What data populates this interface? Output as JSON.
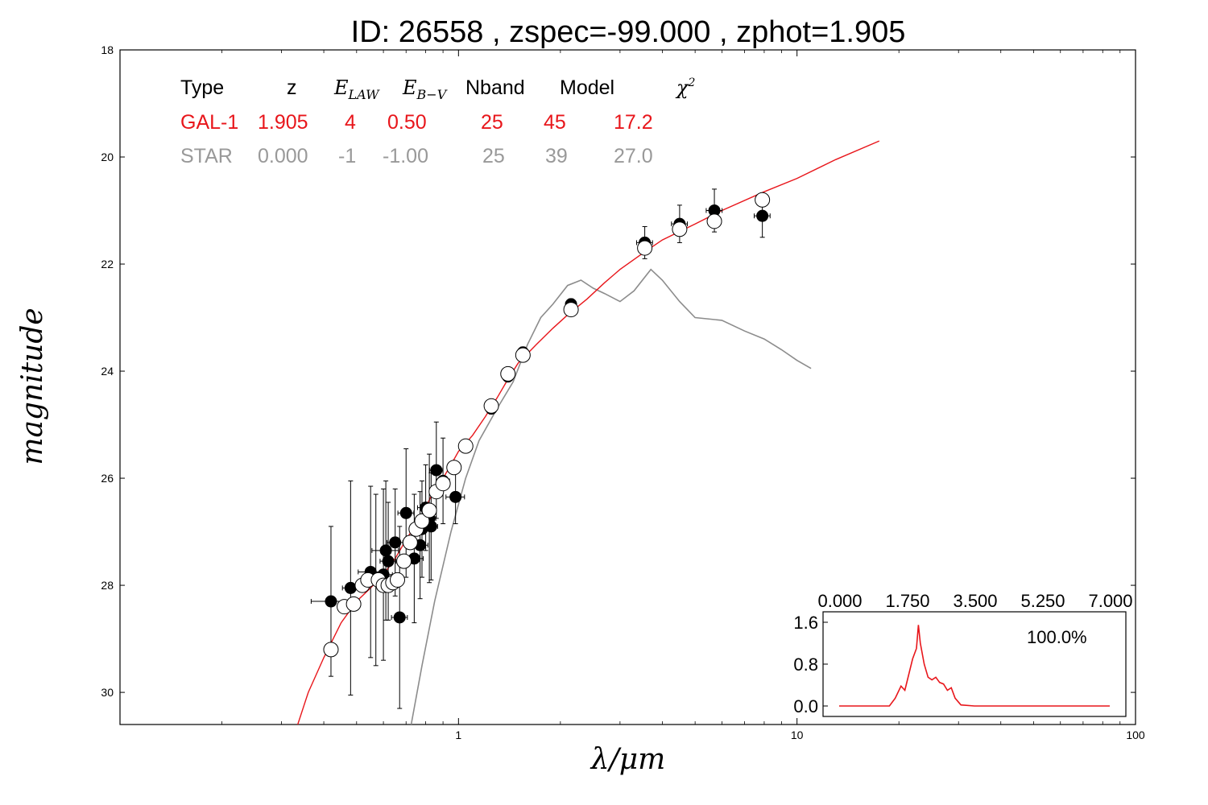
{
  "chart_data": [
    {
      "type": "scatter",
      "title": "ID:  26558 , zspec=-99.000 , zphot=1.905",
      "xlabel": "λ/μm",
      "ylabel": "magnitude",
      "xscale": "log",
      "xlim": [
        0.1,
        100
      ],
      "ylim": [
        30.6,
        18
      ],
      "yaxis_inverted": true,
      "x_tick_labels": [
        "1",
        "10",
        "100"
      ],
      "x_ticks": [
        1,
        10,
        100
      ],
      "y_tick_labels": [
        "18",
        "20",
        "22",
        "24",
        "26",
        "28",
        "30"
      ],
      "y_ticks": [
        18,
        20,
        22,
        24,
        26,
        28,
        30
      ],
      "table": {
        "header": [
          "Type",
          "z",
          "E_LAW",
          "E_B−V",
          "Nband",
          "Model",
          "χ²"
        ],
        "rows": [
          {
            "name": "GAL-1",
            "color": "#e8161b",
            "cells": [
              "GAL-1",
              "1.905",
              "4",
              "0.50",
              "25",
              "45",
              "17.2"
            ]
          },
          {
            "name": "STAR",
            "color": "#999999",
            "cells": [
              "STAR",
              "0.000",
              "-1",
              "-1.00",
              "25",
              "39",
              "27.0"
            ]
          }
        ]
      },
      "colors": {
        "galaxy_model": "#e8161b",
        "star_model": "#8c8c8c",
        "observed": "#000000",
        "model_mag": "#ffffff"
      },
      "series": [
        {
          "style": "filled-circles-errorbars",
          "points": [
            [
              0.42,
              28.3,
              0.7,
              1.4
            ],
            [
              0.48,
              28.05,
              0.3,
              2.0
            ],
            [
              0.55,
              27.75,
              0.45,
              1.6
            ],
            [
              0.57,
              27.9,
              0.4,
              1.6
            ],
            [
              0.6,
              27.8,
              0.35,
              1.6
            ],
            [
              0.61,
              27.35,
              0.5,
              1.3
            ],
            [
              0.62,
              27.55,
              0.3,
              1.1
            ],
            [
              0.65,
              27.2,
              0.3,
              1.0
            ],
            [
              0.67,
              28.6,
              0.3,
              1.7
            ],
            [
              0.7,
              26.65,
              0.3,
              1.2
            ],
            [
              0.74,
              27.5,
              0.35,
              1.2
            ],
            [
              0.77,
              27.25,
              0.3,
              1.0
            ],
            [
              0.78,
              26.95,
              0.3,
              0.9
            ],
            [
              0.8,
              26.55,
              0.3,
              0.8
            ],
            [
              0.82,
              26.75,
              0.25,
              1.2
            ],
            [
              0.83,
              26.9,
              0.25,
              1.0
            ],
            [
              0.86,
              25.85,
              0.25,
              0.9
            ],
            [
              0.9,
              26.05,
              0.25,
              0.8
            ],
            [
              0.98,
              26.35,
              0.35,
              0.5
            ],
            [
              1.25,
              24.7,
              0.2,
              0.1
            ],
            [
              1.4,
              24.1,
              0.2,
              0.1
            ],
            [
              1.55,
              23.65,
              0.2,
              0.1
            ],
            [
              2.15,
              22.75,
              0.2,
              0.1
            ],
            [
              3.55,
              21.6,
              0.3,
              0.3
            ],
            [
              4.5,
              21.25,
              0.3,
              0.35
            ],
            [
              5.7,
              21.0,
              0.3,
              0.4
            ],
            [
              7.9,
              21.1,
              0.3,
              0.4
            ]
          ]
        },
        {
          "style": "open-circles",
          "points": [
            [
              0.42,
              29.2
            ],
            [
              0.46,
              28.4
            ],
            [
              0.49,
              28.35
            ],
            [
              0.52,
              28.0
            ],
            [
              0.54,
              27.9
            ],
            [
              0.58,
              27.9
            ],
            [
              0.6,
              28.0
            ],
            [
              0.62,
              28.0
            ],
            [
              0.64,
              27.95
            ],
            [
              0.66,
              27.9
            ],
            [
              0.69,
              27.55
            ],
            [
              0.72,
              27.2
            ],
            [
              0.75,
              26.95
            ],
            [
              0.78,
              26.8
            ],
            [
              0.82,
              26.6
            ],
            [
              0.86,
              26.25
            ],
            [
              0.9,
              26.1
            ],
            [
              0.97,
              25.8
            ],
            [
              1.05,
              25.4
            ],
            [
              1.25,
              24.65
            ],
            [
              1.4,
              24.05
            ],
            [
              1.55,
              23.7
            ],
            [
              2.15,
              22.85
            ],
            [
              3.55,
              21.7
            ],
            [
              4.5,
              21.35
            ],
            [
              5.7,
              21.2
            ],
            [
              7.9,
              20.8
            ]
          ]
        },
        {
          "style": "line",
          "color": "#e8161b",
          "points": [
            [
              0.335,
              30.6
            ],
            [
              0.36,
              30.0
            ],
            [
              0.4,
              29.35
            ],
            [
              0.45,
              28.7
            ],
            [
              0.5,
              28.3
            ],
            [
              0.55,
              28.05
            ],
            [
              0.6,
              27.8
            ],
            [
              0.65,
              27.5
            ],
            [
              0.7,
              27.15
            ],
            [
              0.75,
              26.85
            ],
            [
              0.8,
              26.55
            ],
            [
              0.85,
              26.2
            ],
            [
              0.9,
              26.0
            ],
            [
              0.95,
              25.75
            ],
            [
              1.0,
              25.5
            ],
            [
              1.1,
              25.2
            ],
            [
              1.2,
              24.85
            ],
            [
              1.3,
              24.5
            ],
            [
              1.4,
              24.15
            ],
            [
              1.5,
              23.85
            ],
            [
              1.7,
              23.5
            ],
            [
              1.9,
              23.2
            ],
            [
              2.1,
              22.95
            ],
            [
              2.4,
              22.65
            ],
            [
              2.7,
              22.35
            ],
            [
              3.0,
              22.1
            ],
            [
              3.5,
              21.8
            ],
            [
              4.0,
              21.55
            ],
            [
              5.0,
              21.25
            ],
            [
              6.0,
              21.0
            ],
            [
              8.0,
              20.65
            ],
            [
              10.0,
              20.4
            ],
            [
              13.0,
              20.05
            ],
            [
              17.5,
              19.7
            ]
          ]
        },
        {
          "style": "line",
          "color": "#8c8c8c",
          "points": [
            [
              0.725,
              30.6
            ],
            [
              0.78,
              29.5
            ],
            [
              0.85,
              28.3
            ],
            [
              0.95,
              27.0
            ],
            [
              1.05,
              26.0
            ],
            [
              1.15,
              25.3
            ],
            [
              1.3,
              24.7
            ],
            [
              1.45,
              24.2
            ],
            [
              1.6,
              23.5
            ],
            [
              1.75,
              23.0
            ],
            [
              1.9,
              22.75
            ],
            [
              2.1,
              22.4
            ],
            [
              2.3,
              22.3
            ],
            [
              2.5,
              22.45
            ],
            [
              2.7,
              22.55
            ],
            [
              3.0,
              22.7
            ],
            [
              3.3,
              22.5
            ],
            [
              3.7,
              22.1
            ],
            [
              4.0,
              22.3
            ],
            [
              4.5,
              22.7
            ],
            [
              5.0,
              23.0
            ],
            [
              6.0,
              23.05
            ],
            [
              7.0,
              23.25
            ],
            [
              8.0,
              23.4
            ],
            [
              9.0,
              23.6
            ],
            [
              10.0,
              23.8
            ],
            [
              11.0,
              23.95
            ]
          ]
        }
      ]
    },
    {
      "type": "line",
      "title": "",
      "xlim": [
        0,
        7
      ],
      "ylim": [
        -0.2,
        1.8
      ],
      "x_tick_labels": [
        "0.000",
        "1.750",
        "3.500",
        "5.250",
        "7.000"
      ],
      "y_tick_labels": [
        "0.0",
        "0.8",
        "1.6"
      ],
      "y_ticks": [
        0.0,
        0.8,
        1.6
      ],
      "annotation": "100.0%",
      "series": [
        {
          "color": "#e8161b",
          "points": [
            [
              0.0,
              0.0
            ],
            [
              1.3,
              0.0
            ],
            [
              1.45,
              0.15
            ],
            [
              1.6,
              0.38
            ],
            [
              1.7,
              0.3
            ],
            [
              1.8,
              0.6
            ],
            [
              1.9,
              0.9
            ],
            [
              2.0,
              1.1
            ],
            [
              2.05,
              1.55
            ],
            [
              2.1,
              1.2
            ],
            [
              2.2,
              0.8
            ],
            [
              2.3,
              0.55
            ],
            [
              2.4,
              0.5
            ],
            [
              2.5,
              0.55
            ],
            [
              2.6,
              0.45
            ],
            [
              2.7,
              0.42
            ],
            [
              2.8,
              0.3
            ],
            [
              2.9,
              0.35
            ],
            [
              3.0,
              0.15
            ],
            [
              3.15,
              0.02
            ],
            [
              3.5,
              0.0
            ],
            [
              7.0,
              0.0
            ]
          ]
        }
      ]
    }
  ]
}
